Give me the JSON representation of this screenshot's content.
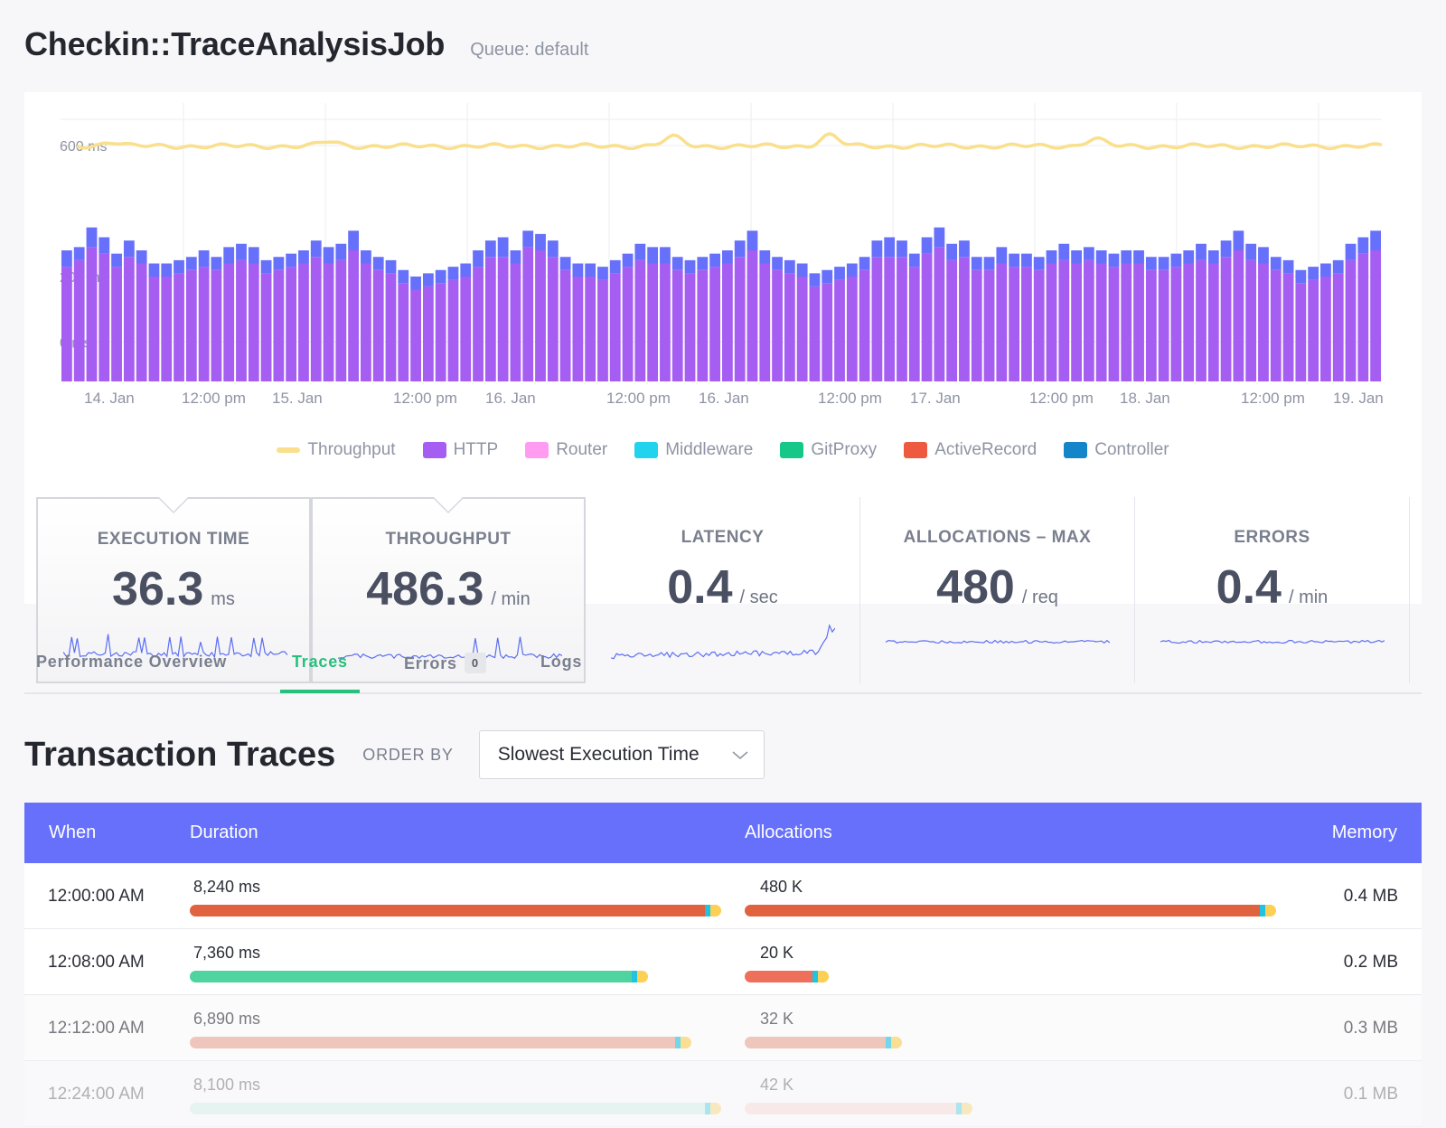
{
  "header": {
    "title": "Checkin::TraceAnalysisJob",
    "queue": "Queue: default"
  },
  "colors": {
    "throughput": "#fadf8c",
    "http": "#a55ef1",
    "router": "#ff9cf2",
    "middleware": "#21d3ec",
    "gitproxy": "#15c888",
    "activerecord": "#ee5a3f",
    "controller": "#1585c9",
    "series_top": "#6670fb"
  },
  "chart_data": {
    "type": "bar",
    "title": "",
    "ylabel": "",
    "yticks": [
      "600 ms",
      "200 ms",
      "0 ms"
    ],
    "ylim": [
      0,
      800
    ],
    "xticks": [
      "14. Jan",
      "12:00 pm",
      "15. Jan",
      "12:00 pm",
      "16. Jan",
      "12:00 pm",
      "16. Jan",
      "12:00 pm",
      "17. Jan",
      "12:00 pm",
      "18. Jan",
      "12:00 pm",
      "19. Jan"
    ],
    "legend": [
      "Throughput",
      "HTTP",
      "Router",
      "Middleware",
      "GitProxy",
      "ActiveRecord",
      "Controller"
    ],
    "throughput_ms": 598,
    "series": [
      {
        "name": "HTTP",
        "values": [
          230,
          250,
          290,
          270,
          230,
          260,
          240,
          200,
          200,
          210,
          220,
          230,
          220,
          240,
          250,
          240,
          210,
          220,
          230,
          240,
          260,
          240,
          250,
          280,
          240,
          220,
          210,
          180,
          160,
          170,
          180,
          190,
          200,
          230,
          260,
          260,
          240,
          290,
          280,
          260,
          220,
          200,
          200,
          190,
          210,
          230,
          250,
          240,
          240,
          220,
          210,
          220,
          230,
          240,
          260,
          280,
          240,
          220,
          210,
          200,
          170,
          180,
          190,
          200,
          220,
          260,
          260,
          260,
          230,
          270,
          290,
          250,
          260,
          220,
          220,
          240,
          230,
          230,
          220,
          240,
          250,
          240,
          250,
          240,
          230,
          240,
          240,
          220,
          220,
          230,
          240,
          250,
          240,
          260,
          280,
          250,
          240,
          220,
          210,
          180,
          190,
          200,
          210,
          250,
          270,
          280
        ]
      },
      {
        "name": "Controller",
        "values": [
          50,
          40,
          60,
          50,
          40,
          50,
          40,
          40,
          40,
          40,
          40,
          50,
          40,
          50,
          50,
          50,
          40,
          40,
          40,
          40,
          50,
          50,
          50,
          60,
          40,
          40,
          40,
          40,
          40,
          40,
          40,
          40,
          40,
          50,
          50,
          60,
          40,
          50,
          50,
          50,
          40,
          40,
          40,
          40,
          40,
          40,
          50,
          50,
          50,
          40,
          40,
          40,
          40,
          40,
          50,
          60,
          40,
          40,
          40,
          40,
          40,
          40,
          40,
          40,
          40,
          50,
          60,
          50,
          40,
          50,
          60,
          50,
          50,
          40,
          40,
          50,
          40,
          40,
          40,
          40,
          50,
          40,
          40,
          40,
          40,
          40,
          40,
          40,
          40,
          40,
          40,
          50,
          40,
          50,
          60,
          50,
          50,
          40,
          40,
          40,
          40,
          40,
          40,
          50,
          50,
          60
        ]
      }
    ]
  },
  "stats": [
    {
      "label": "EXECUTION TIME",
      "value": "36.3",
      "unit": "ms",
      "selected": true
    },
    {
      "label": "THROUGHPUT",
      "value": "486.3",
      "unit": "/ min",
      "selected": true
    },
    {
      "label": "LATENCY",
      "value": "0.4",
      "unit": "/ sec",
      "selected": false
    },
    {
      "label": "ALLOCATIONS – MAX",
      "value": "480",
      "unit": "/ req",
      "selected": false
    },
    {
      "label": "ERRORS",
      "value": "0.4",
      "unit": "/ min",
      "selected": false
    }
  ],
  "tabs": [
    {
      "label": "Performance Overview"
    },
    {
      "label": "Traces"
    },
    {
      "label": "Errors",
      "badge": "0"
    },
    {
      "label": "Logs"
    }
  ],
  "traces": {
    "title": "Transaction Traces",
    "order_label": "ORDER BY",
    "order_value": "Slowest Execution Time",
    "columns": [
      "When",
      "Duration",
      "Allocations",
      "Memory"
    ],
    "rows": [
      {
        "when": "12:00:00 AM",
        "duration": "8,240 ms",
        "duration_frac": 0.98,
        "alloc": "480 K",
        "alloc_frac": 0.98,
        "memory": "0.4 MB",
        "dur_color": "#e0623f",
        "alloc_color": "#e0623f",
        "opacity": 1
      },
      {
        "when": "12:08:00 AM",
        "duration": "7,360 ms",
        "duration_frac": 0.845,
        "alloc": "20 K",
        "alloc_frac": 0.155,
        "memory": "0.2 MB",
        "dur_color": "#4fd39f",
        "alloc_color": "#ee6f5a",
        "opacity": 1
      },
      {
        "when": "12:12:00 AM",
        "duration": "6,890 ms",
        "duration_frac": 0.925,
        "alloc": "32 K",
        "alloc_frac": 0.29,
        "memory": "0.3 MB",
        "dur_color": "#eba998",
        "alloc_color": "#eba998",
        "opacity": 0.62
      },
      {
        "when": "12:24:00 AM",
        "duration": "8,100 ms",
        "duration_frac": 0.98,
        "alloc": "42 K",
        "alloc_frac": 0.42,
        "memory": "0.1 MB",
        "dur_color": "#c9eee2",
        "alloc_color": "#f7d2c6",
        "opacity": 0.35
      }
    ]
  }
}
